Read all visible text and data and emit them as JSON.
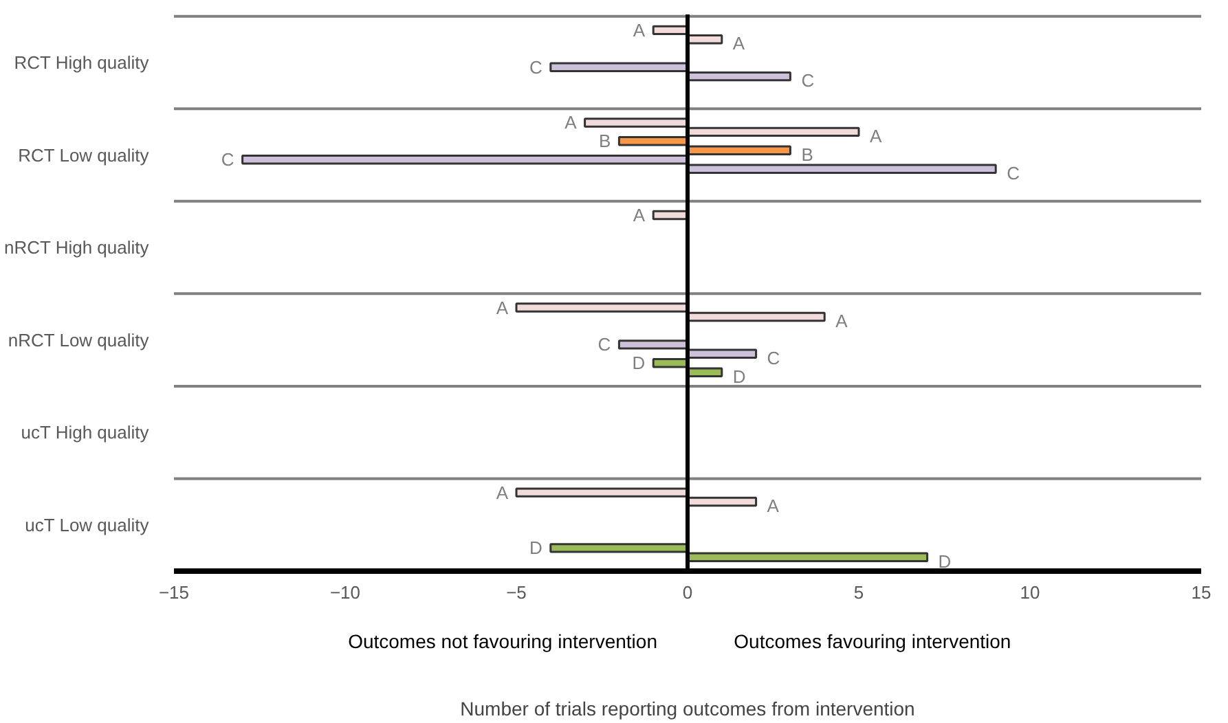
{
  "chart_data": {
    "type": "bar",
    "orientation": "horizontal",
    "xlabel": "Number of trials reporting outcomes from intervention",
    "categories": [
      "RCT High quality",
      "RCT Low quality",
      "nRCT High quality",
      "nRCT Low quality",
      "ucT High quality",
      "ucT Low quality"
    ],
    "series": [
      {
        "name": "A",
        "color": "#f2dcdb",
        "values": [
          -1,
          -3,
          -1,
          -5,
          null,
          -5
        ]
      },
      {
        "name": "A",
        "color": "#f2dcdb",
        "values": [
          1,
          5,
          null,
          4,
          null,
          2
        ]
      },
      {
        "name": "B",
        "color": "#f79646",
        "values": [
          null,
          -2,
          null,
          null,
          null,
          null
        ]
      },
      {
        "name": "B",
        "color": "#f79646",
        "values": [
          null,
          3,
          null,
          null,
          null,
          null
        ]
      },
      {
        "name": "C",
        "color": "#ccc0da",
        "values": [
          -4,
          -13,
          null,
          -2,
          null,
          null
        ]
      },
      {
        "name": "C",
        "color": "#ccc0da",
        "values": [
          3,
          9,
          null,
          2,
          null,
          null
        ]
      },
      {
        "name": "D",
        "color": "#9bbb59",
        "values": [
          null,
          null,
          null,
          -1,
          null,
          -4
        ]
      },
      {
        "name": "D",
        "color": "#9bbb59",
        "values": [
          null,
          null,
          null,
          1,
          null,
          7
        ]
      }
    ],
    "xlim": [
      -15,
      15
    ],
    "xticks": [
      {
        "value": -15,
        "label": "−15"
      },
      {
        "value": -10,
        "label": "−10"
      },
      {
        "value": -5,
        "label": "−5"
      },
      0,
      5,
      10,
      15
    ],
    "ref_lines": [
      {
        "axis": "x",
        "value": 0,
        "color": "#000000"
      }
    ],
    "grid": "y",
    "legend": false,
    "annotations": [
      "Outcomes not favouring intervention",
      "Outcomes favouring intervention"
    ]
  }
}
